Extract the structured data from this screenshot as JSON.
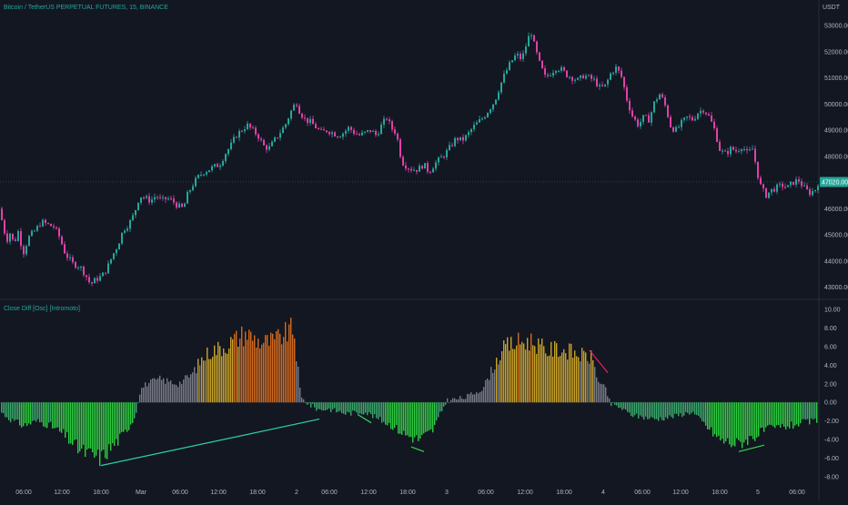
{
  "header": {
    "title": "Bitcoin / TetherUS PERPETUAL FUTURES, 15, BINANCE",
    "currency": "USDT"
  },
  "indicator": {
    "title": "Close Diff [Osc] [Intromoto]"
  },
  "colors": {
    "background": "#131722",
    "up_candle": "#26a69a",
    "down_candle": "#e040a8",
    "grid": "#1e222d",
    "axis_text": "#b2b5be",
    "bright_green": "#2ecc40",
    "teal_green": "#3aa86b",
    "grey_bar": "#787b86",
    "gold_bar": "#c9a227",
    "orange_bar": "#d2691e",
    "trend_teal": "#2bd1b0",
    "trend_green": "#39d353",
    "trend_pink": "#e91e63",
    "price_badge": "#26a69a"
  },
  "chart_data": [
    {
      "type": "candlestick",
      "title": "Bitcoin / TetherUS PERPETUAL FUTURES, 15, BINANCE",
      "ylabel": "USDT",
      "ylim": [
        42600,
        53700
      ],
      "yticks": [
        "53000.00",
        "52000.00",
        "51000.00",
        "50000.00",
        "49000.00",
        "48000.00",
        "47000.00",
        "46000.00",
        "45000.00",
        "44000.00",
        "43000.00"
      ],
      "ytick_values": [
        53000,
        52000,
        51000,
        50000,
        49000,
        48000,
        47000,
        46000,
        45000,
        44000,
        43000
      ],
      "last_price": "47020.00",
      "last_price_value": 47020,
      "price_path": [
        [
          0,
          46000
        ],
        [
          4,
          45300
        ],
        [
          8,
          44800
        ],
        [
          12,
          45100
        ],
        [
          16,
          44600
        ],
        [
          20,
          45200
        ],
        [
          26,
          44300
        ],
        [
          32,
          44900
        ],
        [
          40,
          45200
        ],
        [
          46,
          45500
        ],
        [
          52,
          45400
        ],
        [
          60,
          45300
        ],
        [
          66,
          44900
        ],
        [
          72,
          44300
        ],
        [
          80,
          43900
        ],
        [
          88,
          43800
        ],
        [
          94,
          43500
        ],
        [
          100,
          43100
        ],
        [
          106,
          43300
        ],
        [
          112,
          43400
        ],
        [
          118,
          43700
        ],
        [
          124,
          44200
        ],
        [
          130,
          44600
        ],
        [
          136,
          45200
        ],
        [
          142,
          45400
        ],
        [
          148,
          45800
        ],
        [
          154,
          46500
        ],
        [
          160,
          46400
        ],
        [
          166,
          46300
        ],
        [
          172,
          46500
        ],
        [
          178,
          46300
        ],
        [
          184,
          46400
        ],
        [
          190,
          46300
        ],
        [
          196,
          46100
        ],
        [
          202,
          46000
        ],
        [
          206,
          46500
        ],
        [
          212,
          46900
        ],
        [
          218,
          47200
        ],
        [
          224,
          47400
        ],
        [
          230,
          47500
        ],
        [
          236,
          47600
        ],
        [
          242,
          47700
        ],
        [
          248,
          48100
        ],
        [
          254,
          48400
        ],
        [
          260,
          48800
        ],
        [
          266,
          49000
        ],
        [
          272,
          49200
        ],
        [
          278,
          49000
        ],
        [
          284,
          48800
        ],
        [
          290,
          48400
        ],
        [
          296,
          48300
        ],
        [
          302,
          48600
        ],
        [
          308,
          48900
        ],
        [
          314,
          49200
        ],
        [
          320,
          49700
        ],
        [
          326,
          50100
        ],
        [
          330,
          49700
        ],
        [
          336,
          49400
        ],
        [
          342,
          49300
        ],
        [
          348,
          49100
        ],
        [
          354,
          48900
        ],
        [
          360,
          49000
        ],
        [
          366,
          48900
        ],
        [
          372,
          48800
        ],
        [
          378,
          48900
        ],
        [
          384,
          49100
        ],
        [
          390,
          48900
        ],
        [
          396,
          48800
        ],
        [
          402,
          48900
        ],
        [
          408,
          49000
        ],
        [
          414,
          48800
        ],
        [
          420,
          49200
        ],
        [
          426,
          49500
        ],
        [
          430,
          49100
        ],
        [
          436,
          48900
        ],
        [
          442,
          47800
        ],
        [
          448,
          47600
        ],
        [
          454,
          47500
        ],
        [
          460,
          47500
        ],
        [
          466,
          47700
        ],
        [
          472,
          47400
        ],
        [
          478,
          47700
        ],
        [
          484,
          47900
        ],
        [
          490,
          48100
        ],
        [
          496,
          48400
        ],
        [
          502,
          48700
        ],
        [
          508,
          48600
        ],
        [
          514,
          48800
        ],
        [
          520,
          49100
        ],
        [
          526,
          49300
        ],
        [
          532,
          49500
        ],
        [
          538,
          49800
        ],
        [
          544,
          50100
        ],
        [
          550,
          50700
        ],
        [
          556,
          51200
        ],
        [
          562,
          51600
        ],
        [
          568,
          51900
        ],
        [
          574,
          51700
        ],
        [
          580,
          52400
        ],
        [
          584,
          52800
        ],
        [
          588,
          52200
        ],
        [
          594,
          51500
        ],
        [
          600,
          51000
        ],
        [
          606,
          51200
        ],
        [
          612,
          51400
        ],
        [
          618,
          51300
        ],
        [
          624,
          51100
        ],
        [
          630,
          51000
        ],
        [
          636,
          50900
        ],
        [
          642,
          51100
        ],
        [
          648,
          51000
        ],
        [
          654,
          50900
        ],
        [
          660,
          50600
        ],
        [
          666,
          50700
        ],
        [
          672,
          51200
        ],
        [
          678,
          51400
        ],
        [
          684,
          51000
        ],
        [
          690,
          50100
        ],
        [
          696,
          49500
        ],
        [
          702,
          49200
        ],
        [
          708,
          49500
        ],
        [
          714,
          49400
        ],
        [
          720,
          50100
        ],
        [
          726,
          50400
        ],
        [
          732,
          49900
        ],
        [
          738,
          49100
        ],
        [
          744,
          49000
        ],
        [
          750,
          49300
        ],
        [
          756,
          49500
        ],
        [
          762,
          49400
        ],
        [
          768,
          49700
        ],
        [
          774,
          49800
        ],
        [
          780,
          49500
        ],
        [
          786,
          49000
        ],
        [
          792,
          48200
        ],
        [
          798,
          48100
        ],
        [
          804,
          48300
        ],
        [
          810,
          48200
        ],
        [
          816,
          48400
        ],
        [
          822,
          48100
        ],
        [
          828,
          48300
        ],
        [
          832,
          47500
        ],
        [
          836,
          46900
        ],
        [
          842,
          46500
        ],
        [
          848,
          46700
        ],
        [
          854,
          46800
        ],
        [
          860,
          46900
        ],
        [
          866,
          46800
        ],
        [
          872,
          47000
        ],
        [
          878,
          47100
        ],
        [
          884,
          46800
        ],
        [
          890,
          46600
        ],
        [
          896,
          46700
        ],
        [
          900,
          47020
        ]
      ]
    },
    {
      "type": "bar",
      "title": "Close Diff [Osc] [Intromoto]",
      "ylim": [
        -8.6,
        10.8
      ],
      "yticks": [
        "10.00",
        "8.00",
        "6.00",
        "4.00",
        "2.00",
        "0.00",
        "-2.00",
        "-4.00",
        "-6.00",
        "-8.00"
      ],
      "ytick_values": [
        10,
        8,
        6,
        4,
        2,
        0,
        -2,
        -4,
        -6,
        -8
      ],
      "profile_x": [
        0,
        10,
        25,
        40,
        55,
        70,
        85,
        95,
        110,
        125,
        135,
        148,
        152,
        155,
        160,
        175,
        195,
        210,
        220,
        230,
        245,
        258,
        270,
        285,
        300,
        315,
        322,
        330,
        340,
        350,
        360,
        380,
        400,
        420,
        430,
        445,
        460,
        475,
        490,
        510,
        530,
        545,
        555,
        570,
        585,
        600,
        610,
        625,
        640,
        650,
        658,
        665,
        670,
        680,
        690,
        700,
        720,
        740,
        760,
        780,
        790,
        800,
        810,
        820,
        830,
        840,
        850,
        860,
        870,
        880,
        895,
        900
      ],
      "profile_y": [
        -1.0,
        -1.8,
        -2.5,
        -2.0,
        -2.5,
        -3.5,
        -5.0,
        -5.5,
        -6.0,
        -4.5,
        -3.5,
        -1.5,
        0.8,
        1.5,
        2.0,
        2.5,
        2.0,
        3.0,
        4.5,
        5.5,
        6.0,
        6.8,
        7.5,
        6.5,
        6.6,
        7.5,
        8.0,
        0.5,
        -0.3,
        -0.8,
        -0.7,
        -1.2,
        -1.0,
        -2.0,
        -2.5,
        -3.5,
        -4.0,
        -3.0,
        0.2,
        0.5,
        1.5,
        4.5,
        6.0,
        6.5,
        6.6,
        5.5,
        5.8,
        5.5,
        5.0,
        4.8,
        2.0,
        1.5,
        -0.2,
        -0.5,
        -1.2,
        -1.5,
        -1.8,
        -1.5,
        -1.0,
        -3.0,
        -4.0,
        -4.3,
        -4.5,
        -4.0,
        -3.6,
        -3.0,
        -2.8,
        -2.6,
        -2.5,
        -2.2,
        -2.0,
        -2.0
      ],
      "trendlines": [
        {
          "color": "trend_teal",
          "from": [
            111,
            -6.8
          ],
          "to": [
            351,
            -1.8
          ]
        },
        {
          "color": "trend_green",
          "from": [
            393,
            -1.3
          ],
          "to": [
            408,
            -2.2
          ]
        },
        {
          "color": "trend_green",
          "from": [
            452,
            -4.8
          ],
          "to": [
            466,
            -5.3
          ]
        },
        {
          "color": "trend_pink",
          "from": [
            648,
            5.6
          ],
          "to": [
            668,
            3.2
          ]
        },
        {
          "color": "trend_green",
          "from": [
            812,
            -5.3
          ],
          "to": [
            840,
            -4.6
          ]
        }
      ]
    }
  ],
  "x_axis": {
    "labels": [
      {
        "x": 26,
        "text": "06:00"
      },
      {
        "x": 68,
        "text": "12:00"
      },
      {
        "x": 111,
        "text": "18:00"
      },
      {
        "x": 155,
        "text": "Mar"
      },
      {
        "x": 198,
        "text": "06:00"
      },
      {
        "x": 240,
        "text": "12:00"
      },
      {
        "x": 283,
        "text": "18:00"
      },
      {
        "x": 326,
        "text": "2"
      },
      {
        "x": 362,
        "text": "06:00"
      },
      {
        "x": 405,
        "text": "12:00"
      },
      {
        "x": 448,
        "text": "18:00"
      },
      {
        "x": 491,
        "text": "3"
      },
      {
        "x": 534,
        "text": "06:00"
      },
      {
        "x": 577,
        "text": "12:00"
      },
      {
        "x": 620,
        "text": "18:00"
      },
      {
        "x": 663,
        "text": "4"
      },
      {
        "x": 706,
        "text": "06:00"
      },
      {
        "x": 748,
        "text": "12:00"
      },
      {
        "x": 791,
        "text": "18:00"
      },
      {
        "x": 833,
        "text": "5"
      },
      {
        "x": 876,
        "text": "06:00"
      }
    ]
  }
}
